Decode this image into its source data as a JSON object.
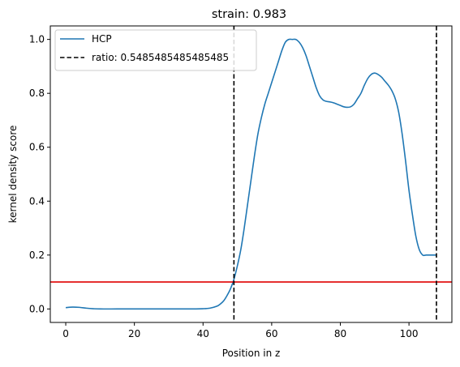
{
  "chart_data": {
    "type": "line",
    "title": "strain: 0.983",
    "xlabel": "Position in z",
    "ylabel": "kernel density score",
    "xlim": [
      -4.5,
      112.5
    ],
    "ylim": [
      -0.05,
      1.05
    ],
    "xticks": [
      0,
      20,
      40,
      60,
      80,
      100
    ],
    "yticks": [
      0.0,
      0.2,
      0.4,
      0.6,
      0.8,
      1.0
    ],
    "xtick_labels": [
      "0",
      "20",
      "40",
      "60",
      "80",
      "100"
    ],
    "ytick_labels": [
      "0.0",
      "0.2",
      "0.4",
      "0.6",
      "0.8",
      "1.0"
    ],
    "grid": false,
    "legend_placement": "upper left",
    "series": [
      {
        "name": "HCP",
        "color": "#1f77b4",
        "x": [
          0,
          2,
          4,
          6,
          8,
          10,
          15,
          20,
          25,
          30,
          35,
          40,
          42,
          44,
          45,
          46,
          47,
          48,
          49,
          50,
          51,
          52,
          53,
          54,
          55,
          56,
          57,
          58,
          59,
          60,
          61,
          62,
          63,
          64,
          65,
          66,
          67,
          68,
          69,
          70,
          71,
          72,
          73,
          74,
          75,
          76,
          77,
          78,
          79,
          80,
          81,
          82,
          83,
          84,
          85,
          86,
          87,
          88,
          89,
          90,
          91,
          92,
          93,
          94,
          95,
          96,
          97,
          98,
          99,
          100,
          101,
          102,
          103,
          104,
          105,
          106,
          107,
          108
        ],
        "y": [
          0.005,
          0.007,
          0.006,
          0.003,
          0.001,
          0.0,
          0.0,
          0.0,
          0.0,
          0.0,
          0.0,
          0.001,
          0.003,
          0.01,
          0.018,
          0.03,
          0.05,
          0.075,
          0.11,
          0.16,
          0.22,
          0.3,
          0.39,
          0.48,
          0.57,
          0.65,
          0.71,
          0.76,
          0.8,
          0.84,
          0.88,
          0.92,
          0.96,
          0.99,
          1.0,
          1.0,
          1.0,
          0.99,
          0.97,
          0.94,
          0.9,
          0.86,
          0.82,
          0.79,
          0.775,
          0.77,
          0.768,
          0.765,
          0.76,
          0.755,
          0.75,
          0.748,
          0.75,
          0.76,
          0.78,
          0.8,
          0.83,
          0.855,
          0.87,
          0.875,
          0.87,
          0.86,
          0.845,
          0.83,
          0.81,
          0.78,
          0.73,
          0.65,
          0.55,
          0.44,
          0.35,
          0.27,
          0.22,
          0.2,
          0.2,
          0.2,
          0.2,
          0.2
        ]
      }
    ],
    "vlines": [
      {
        "x": 49,
        "color": "#000000",
        "style": "dashed",
        "label": "ratio: 0.5485485485485485"
      },
      {
        "x": 108,
        "color": "#000000",
        "style": "dashed",
        "label": ""
      }
    ],
    "hlines": [
      {
        "y": 0.1,
        "color": "#e00000",
        "style": "solid"
      }
    ],
    "legend": [
      {
        "label": "HCP",
        "style": "solid",
        "color": "#1f77b4"
      },
      {
        "label": "ratio: 0.5485485485485485",
        "style": "dashed",
        "color": "#000000"
      }
    ]
  }
}
